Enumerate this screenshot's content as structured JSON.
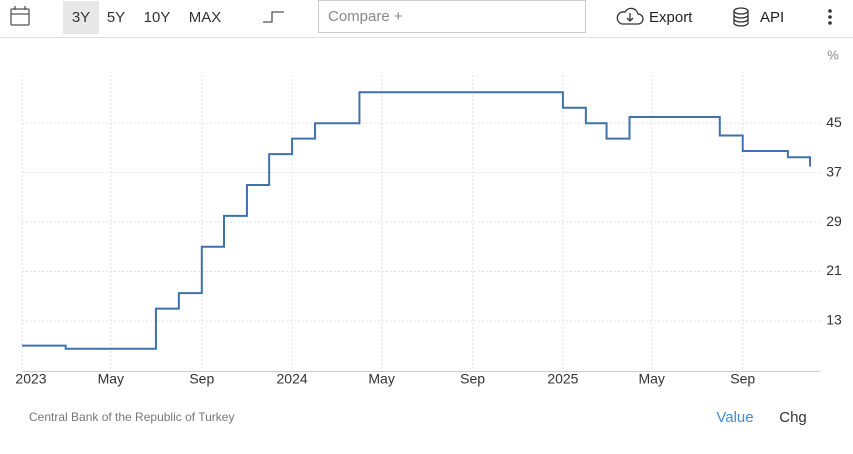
{
  "toolbar": {
    "ranges": [
      "3Y",
      "5Y",
      "10Y",
      "MAX"
    ],
    "compare": "Compare +",
    "export": "Export",
    "api": "API"
  },
  "chart_data": {
    "type": "line",
    "step": true,
    "unit": "%",
    "x": [
      "2023-01",
      "2023-03",
      "2023-07",
      "2023-08",
      "2023-09",
      "2023-10",
      "2023-11",
      "2023-12",
      "2024-01",
      "2024-02",
      "2024-04",
      "2025-01",
      "2025-02",
      "2025-03",
      "2025-04",
      "2025-08",
      "2025-09",
      "2025-11",
      "2025-12"
    ],
    "series": [
      {
        "color": "#3f72ad",
        "values": [
          9,
          8.5,
          15,
          17.5,
          25,
          30,
          35,
          40,
          42.5,
          45,
          50,
          47.5,
          45,
          42.5,
          46,
          43,
          40.5,
          39.5,
          38
        ]
      }
    ],
    "xlim": [
      "2023-01",
      "2026-01"
    ],
    "xticks": [
      {
        "value": "2023-01",
        "label": "2023"
      },
      {
        "value": "2023-05",
        "label": "May"
      },
      {
        "value": "2023-09",
        "label": "Sep"
      },
      {
        "value": "2024-01",
        "label": "2024"
      },
      {
        "value": "2024-05",
        "label": "May"
      },
      {
        "value": "2024-09",
        "label": "Sep"
      },
      {
        "value": "2025-01",
        "label": "2025"
      },
      {
        "value": "2025-05",
        "label": "May"
      },
      {
        "value": "2025-09",
        "label": "Sep"
      }
    ],
    "ylim": [
      4.9,
      52.8
    ],
    "yticks": [
      13,
      21,
      29,
      37,
      45
    ],
    "grid": true
  },
  "footer": {
    "source": "Central Bank of the Republic of Turkey",
    "tabs": [
      "Value",
      "Chg"
    ]
  }
}
